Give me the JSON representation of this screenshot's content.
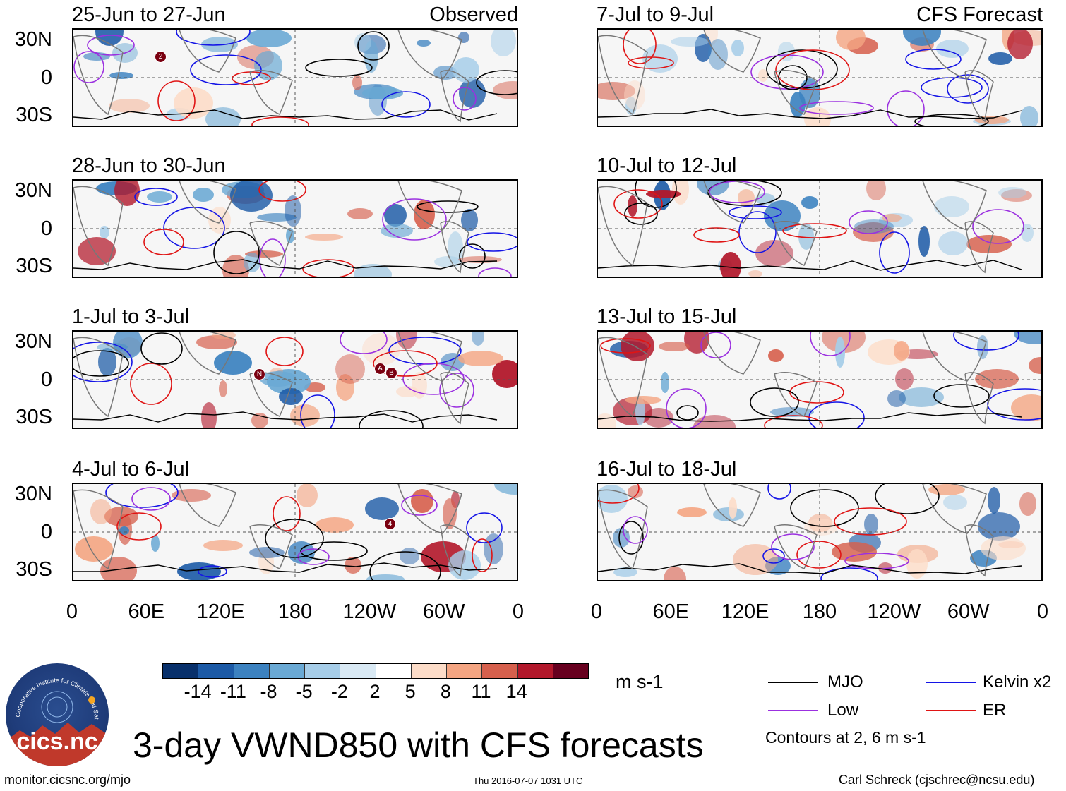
{
  "headers": {
    "observed": "Observed",
    "forecast": "CFS Forecast"
  },
  "panels": [
    {
      "title": "25-Jun to 27-Jun",
      "header": "Observed"
    },
    {
      "title": "28-Jun to 30-Jun",
      "header": ""
    },
    {
      "title": "1-Jul to 3-Jul",
      "header": ""
    },
    {
      "title": "4-Jul to 6-Jul",
      "header": ""
    },
    {
      "title": "7-Jul to 9-Jul",
      "header": "CFS Forecast"
    },
    {
      "title": "10-Jul to 12-Jul",
      "header": ""
    },
    {
      "title": "13-Jul to 15-Jul",
      "header": ""
    },
    {
      "title": "16-Jul to 18-Jul",
      "header": ""
    }
  ],
  "axes": {
    "y_labels": [
      "30N",
      "0",
      "30S"
    ],
    "x_labels": [
      "0",
      "60E",
      "120E",
      "180",
      "120W",
      "60W",
      "0"
    ]
  },
  "storm_labels": [
    "2",
    "N",
    "A",
    "B",
    "4"
  ],
  "colorbar": {
    "labels": [
      "-14",
      "-11",
      "-8",
      "-5",
      "-2",
      "2",
      "5",
      "8",
      "11",
      "14"
    ],
    "colors": [
      "#08306b",
      "#1c5aa6",
      "#3c82c0",
      "#6aa9d4",
      "#a6cde8",
      "#d9e9f4",
      "#ffffff",
      "#fcdcc8",
      "#f4a582",
      "#d6604d",
      "#b2182b",
      "#67001f"
    ],
    "units": "m s-1"
  },
  "legend": {
    "items": [
      {
        "label": "MJO",
        "color": "#000000"
      },
      {
        "label": "Kelvin x2",
        "color": "#1414e6"
      },
      {
        "label": "Low",
        "color": "#9b30e0"
      },
      {
        "label": "ER",
        "color": "#e01414"
      }
    ],
    "contours_note": "Contours at 2, 6 m s-1"
  },
  "title": "3-day VWND850 with CFS forecasts",
  "logo_text": "cics.nc",
  "logo_ring_text": "Cooperative Institute for Climate and Satellites",
  "footer": {
    "url": "monitor.cicsnc.org/mjo",
    "timestamp": "Thu 2016-07-07 1031 UTC",
    "credit": "Carl Schreck (cjschrec@ncsu.edu)"
  }
}
